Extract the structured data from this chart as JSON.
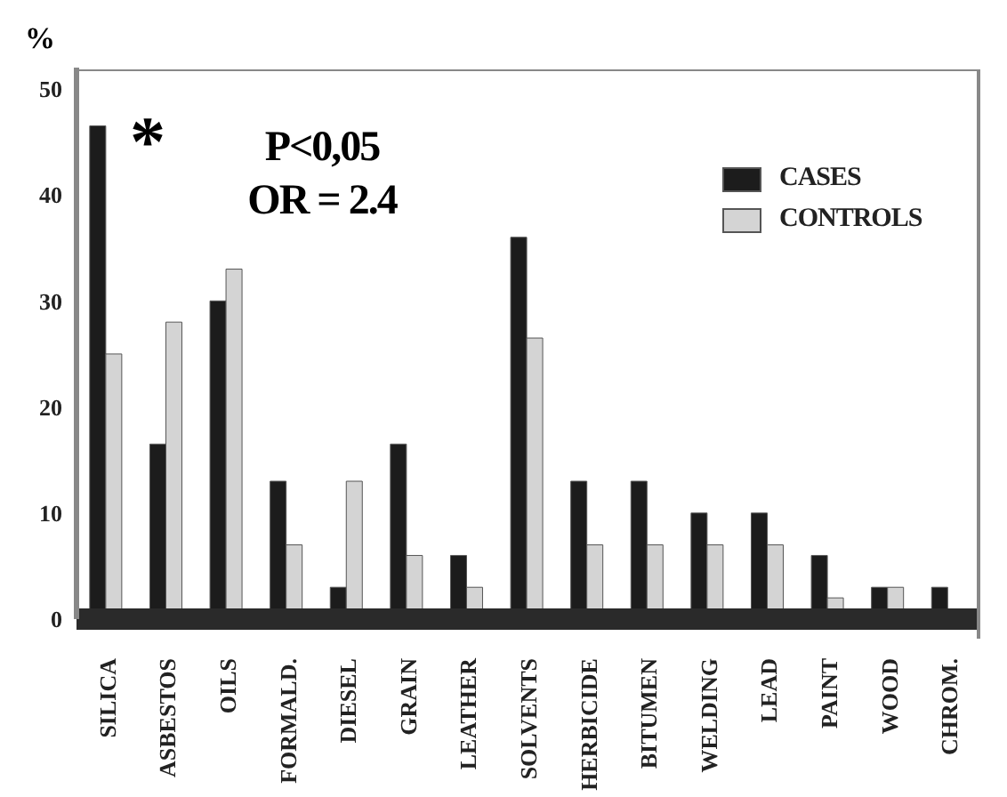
{
  "chart_data": {
    "type": "bar",
    "ylabel": "%",
    "categories": [
      "SILICA",
      "ASBESTOS",
      "OILS",
      "FORMALD.",
      "DIESEL",
      "GRAIN",
      "LEATHER",
      "SOLVENTS",
      "HERBICIDE",
      "BITUMEN",
      "WELDING",
      "LEAD",
      "PAINT",
      "WOOD",
      "CHROM."
    ],
    "series": [
      {
        "name": "CASES",
        "color": "#1c1c1c",
        "values": [
          46.5,
          16.5,
          30,
          13,
          3,
          16.5,
          6,
          36,
          13,
          13,
          10,
          10,
          6,
          3,
          3
        ]
      },
      {
        "name": "CONTROLS",
        "color": "#d4d4d4",
        "values": [
          25,
          28,
          33,
          7,
          13,
          6,
          3,
          26.5,
          7,
          7,
          7,
          7,
          2,
          3,
          0
        ]
      }
    ],
    "ylim": [
      0,
      52
    ],
    "yticks": [
      0,
      10,
      20,
      30,
      40,
      50
    ],
    "legend": "top right",
    "annotations": [
      "*",
      "P<0,05",
      "OR = 2.4"
    ]
  }
}
